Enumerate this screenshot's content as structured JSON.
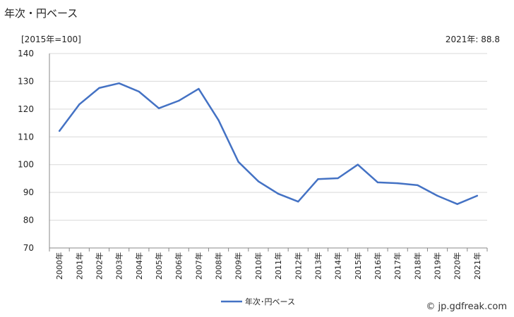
{
  "header": {
    "title": "年次・円ベース",
    "unit_note": "[2015年=100]",
    "latest_value": "2021年: 88.8"
  },
  "footer": {
    "credit": "© jp.gdfreak.com"
  },
  "chart_data": {
    "type": "line",
    "title": "年次・円ベース",
    "categories": [
      "2000年",
      "2001年",
      "2002年",
      "2003年",
      "2004年",
      "2005年",
      "2006年",
      "2007年",
      "2008年",
      "2009年",
      "2010年",
      "2011年",
      "2012年",
      "2013年",
      "2014年",
      "2015年",
      "2016年",
      "2017年",
      "2018年",
      "2019年",
      "2020年",
      "2021年"
    ],
    "series": [
      {
        "name": "年次･円ベース",
        "color": "#4472c4",
        "values": [
          112.1,
          121.7,
          127.6,
          129.3,
          126.3,
          120.3,
          123.0,
          127.3,
          116.0,
          101.0,
          94.0,
          89.5,
          86.7,
          94.8,
          95.1,
          100.0,
          93.6,
          93.3,
          92.6,
          88.8,
          85.8,
          88.8
        ]
      }
    ],
    "ylim": [
      70,
      140
    ],
    "yticks": [
      70,
      80,
      90,
      100,
      110,
      120,
      130,
      140
    ],
    "grid": true,
    "legend": "bottom-center"
  }
}
